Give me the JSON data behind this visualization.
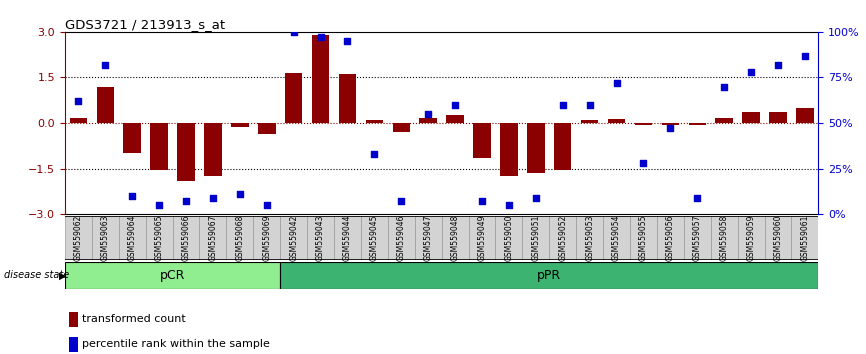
{
  "title": "GDS3721 / 213913_s_at",
  "samples": [
    "GSM559062",
    "GSM559063",
    "GSM559064",
    "GSM559065",
    "GSM559066",
    "GSM559067",
    "GSM559068",
    "GSM559069",
    "GSM559042",
    "GSM559043",
    "GSM559044",
    "GSM559045",
    "GSM559046",
    "GSM559047",
    "GSM559048",
    "GSM559049",
    "GSM559050",
    "GSM559051",
    "GSM559052",
    "GSM559053",
    "GSM559054",
    "GSM559055",
    "GSM559056",
    "GSM559057",
    "GSM559058",
    "GSM559059",
    "GSM559060",
    "GSM559061"
  ],
  "bar_values": [
    0.15,
    1.2,
    -1.0,
    -1.55,
    -1.9,
    -1.75,
    -0.12,
    -0.35,
    1.65,
    2.9,
    1.6,
    0.1,
    -0.3,
    0.15,
    0.25,
    -1.15,
    -1.75,
    -1.65,
    -1.55,
    0.1,
    0.12,
    -0.07,
    -0.07,
    -0.05,
    0.18,
    0.35,
    0.35,
    0.5
  ],
  "percentile_values": [
    62,
    82,
    10,
    5,
    7,
    9,
    11,
    5,
    100,
    97,
    95,
    33,
    7,
    55,
    60,
    7,
    5,
    9,
    60,
    60,
    72,
    28,
    47,
    9,
    70,
    78,
    82,
    87
  ],
  "pcr_count": 8,
  "ppr_count": 20,
  "ylim": [
    -3,
    3
  ],
  "yticks": [
    -3,
    -1.5,
    0,
    1.5,
    3
  ],
  "right_yticks": [
    0,
    25,
    50,
    75,
    100
  ],
  "right_yticklabels": [
    "0%",
    "25%",
    "50%",
    "75%",
    "100%"
  ],
  "dotted_lines": [
    1.5,
    -1.5
  ],
  "bar_color": "#8B0000",
  "dot_color": "#0000CD",
  "pcr_color": "#90EE90",
  "ppr_color": "#3CB371",
  "label_color_red": "#8B0000",
  "label_color_blue": "#0000CD",
  "legend_bar": "transformed count",
  "legend_dot": "percentile rank within the sample",
  "disease_state_label": "disease state",
  "pcr_label": "pCR",
  "ppr_label": "pPR",
  "gray_label_bg": "#d3d3d3",
  "gray_label_border": "#999999"
}
